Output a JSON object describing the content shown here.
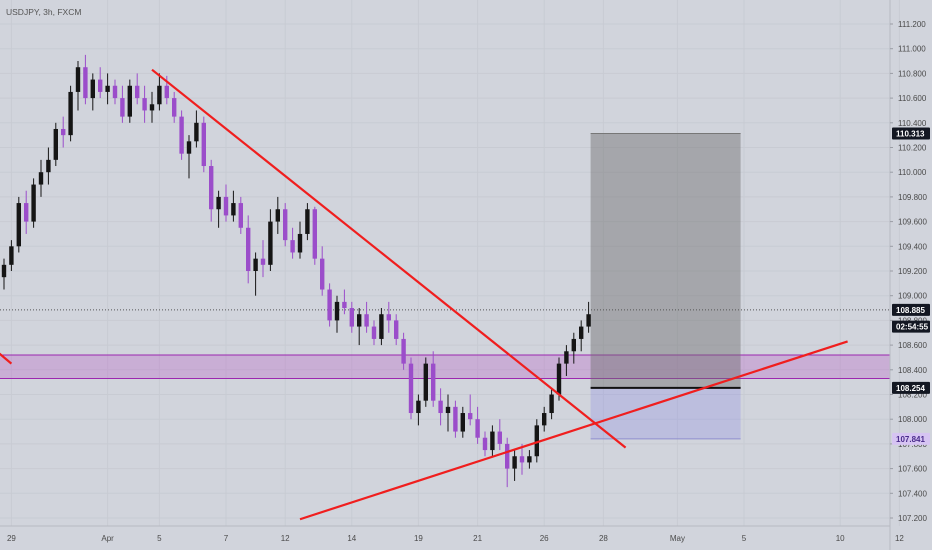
{
  "chart_data": {
    "type": "candlestick",
    "title": "USDJPY, 3h, FXCM",
    "ylim": [
      107.1,
      111.3
    ],
    "y_ticks": [
      "111.200",
      "111.000",
      "110.800",
      "110.600",
      "110.400",
      "110.200",
      "110.000",
      "109.800",
      "109.600",
      "109.400",
      "109.200",
      "109.000",
      "108.800",
      "108.600",
      "108.400",
      "108.200",
      "108.000",
      "107.800",
      "107.600",
      "107.400",
      "107.200"
    ],
    "x_ticks": [
      {
        "label": "29",
        "i": 1
      },
      {
        "label": "Apr",
        "i": 14
      },
      {
        "label": "5",
        "i": 21
      },
      {
        "label": "7",
        "i": 30
      },
      {
        "label": "12",
        "i": 38
      },
      {
        "label": "14",
        "i": 47
      },
      {
        "label": "19",
        "i": 56
      },
      {
        "label": "21",
        "i": 64
      },
      {
        "label": "26",
        "i": 73
      },
      {
        "label": "28",
        "i": 81
      },
      {
        "label": "May",
        "i": 91
      },
      {
        "label": "5",
        "i": 100
      },
      {
        "label": "10",
        "i": 113
      },
      {
        "label": "12",
        "i": 121
      }
    ],
    "price_labels": [
      {
        "text": "110.313",
        "value": 110.313,
        "style": "dark"
      },
      {
        "text": "108.885",
        "value": 108.885,
        "style": "dark"
      },
      {
        "text": "02:54:55",
        "value": 108.75,
        "style": "dark-sub"
      },
      {
        "text": "108.254",
        "value": 108.254,
        "style": "dark"
      },
      {
        "text": "107.841",
        "value": 107.841,
        "style": "purple"
      }
    ],
    "current_price": 108.885,
    "candles": [
      [
        109.15,
        109.3,
        109.05,
        109.25
      ],
      [
        109.25,
        109.45,
        109.2,
        109.4
      ],
      [
        109.4,
        109.8,
        109.35,
        109.75
      ],
      [
        109.75,
        109.85,
        109.5,
        109.6
      ],
      [
        109.6,
        109.95,
        109.55,
        109.9
      ],
      [
        109.9,
        110.1,
        109.8,
        110.0
      ],
      [
        110.0,
        110.2,
        109.9,
        110.1
      ],
      [
        110.1,
        110.4,
        110.05,
        110.35
      ],
      [
        110.35,
        110.45,
        110.2,
        110.3
      ],
      [
        110.3,
        110.7,
        110.25,
        110.65
      ],
      [
        110.65,
        110.9,
        110.5,
        110.85
      ],
      [
        110.85,
        110.95,
        110.55,
        110.6
      ],
      [
        110.6,
        110.8,
        110.5,
        110.75
      ],
      [
        110.75,
        110.85,
        110.6,
        110.65
      ],
      [
        110.65,
        110.8,
        110.55,
        110.7
      ],
      [
        110.7,
        110.75,
        110.55,
        110.6
      ],
      [
        110.6,
        110.7,
        110.4,
        110.45
      ],
      [
        110.45,
        110.75,
        110.4,
        110.7
      ],
      [
        110.7,
        110.8,
        110.55,
        110.6
      ],
      [
        110.6,
        110.7,
        110.4,
        110.5
      ],
      [
        110.5,
        110.65,
        110.4,
        110.55
      ],
      [
        110.55,
        110.8,
        110.5,
        110.7
      ],
      [
        110.7,
        110.78,
        110.55,
        110.6
      ],
      [
        110.6,
        110.65,
        110.4,
        110.45
      ],
      [
        110.45,
        110.5,
        110.1,
        110.15
      ],
      [
        110.15,
        110.3,
        109.95,
        110.25
      ],
      [
        110.25,
        110.5,
        110.2,
        110.4
      ],
      [
        110.4,
        110.45,
        110.0,
        110.05
      ],
      [
        110.05,
        110.1,
        109.6,
        109.7
      ],
      [
        109.7,
        109.85,
        109.55,
        109.8
      ],
      [
        109.8,
        109.9,
        109.6,
        109.65
      ],
      [
        109.65,
        109.85,
        109.6,
        109.75
      ],
      [
        109.75,
        109.8,
        109.5,
        109.55
      ],
      [
        109.55,
        109.65,
        109.1,
        109.2
      ],
      [
        109.2,
        109.35,
        109.0,
        109.3
      ],
      [
        109.3,
        109.45,
        109.15,
        109.25
      ],
      [
        109.25,
        109.7,
        109.2,
        109.6
      ],
      [
        109.6,
        109.8,
        109.5,
        109.7
      ],
      [
        109.7,
        109.75,
        109.4,
        109.45
      ],
      [
        109.45,
        109.55,
        109.3,
        109.35
      ],
      [
        109.35,
        109.6,
        109.3,
        109.5
      ],
      [
        109.5,
        109.75,
        109.45,
        109.7
      ],
      [
        109.7,
        109.72,
        109.25,
        109.3
      ],
      [
        109.3,
        109.4,
        109.0,
        109.05
      ],
      [
        109.05,
        109.1,
        108.75,
        108.8
      ],
      [
        108.8,
        109.0,
        108.7,
        108.95
      ],
      [
        108.95,
        109.05,
        108.85,
        108.9
      ],
      [
        108.9,
        108.95,
        108.7,
        108.75
      ],
      [
        108.75,
        108.9,
        108.6,
        108.85
      ],
      [
        108.85,
        108.95,
        108.7,
        108.75
      ],
      [
        108.75,
        108.8,
        108.6,
        108.65
      ],
      [
        108.65,
        108.9,
        108.6,
        108.85
      ],
      [
        108.85,
        108.95,
        108.7,
        108.8
      ],
      [
        108.8,
        108.85,
        108.6,
        108.65
      ],
      [
        108.65,
        108.7,
        108.4,
        108.45
      ],
      [
        108.45,
        108.5,
        108.0,
        108.05
      ],
      [
        108.05,
        108.2,
        107.95,
        108.15
      ],
      [
        108.15,
        108.5,
        108.1,
        108.45
      ],
      [
        108.45,
        108.55,
        108.1,
        108.15
      ],
      [
        108.15,
        108.25,
        107.95,
        108.05
      ],
      [
        108.05,
        108.2,
        107.9,
        108.1
      ],
      [
        108.1,
        108.15,
        107.85,
        107.9
      ],
      [
        107.9,
        108.1,
        107.85,
        108.05
      ],
      [
        108.05,
        108.2,
        107.95,
        108.0
      ],
      [
        108.0,
        108.1,
        107.8,
        107.85
      ],
      [
        107.85,
        107.9,
        107.7,
        107.75
      ],
      [
        107.75,
        107.95,
        107.7,
        107.9
      ],
      [
        107.9,
        108.0,
        107.75,
        107.8
      ],
      [
        107.8,
        107.85,
        107.45,
        107.6
      ],
      [
        107.6,
        107.75,
        107.5,
        107.7
      ],
      [
        107.7,
        107.8,
        107.55,
        107.65
      ],
      [
        107.65,
        107.75,
        107.6,
        107.7
      ],
      [
        107.7,
        108.0,
        107.65,
        107.95
      ],
      [
        107.95,
        108.1,
        107.9,
        108.05
      ],
      [
        108.05,
        108.25,
        108.0,
        108.2
      ],
      [
        108.2,
        108.5,
        108.15,
        108.45
      ],
      [
        108.45,
        108.6,
        108.35,
        108.55
      ],
      [
        108.55,
        108.7,
        108.45,
        108.65
      ],
      [
        108.65,
        108.8,
        108.55,
        108.75
      ],
      [
        108.75,
        108.95,
        108.7,
        108.85
      ]
    ],
    "annotations": {
      "support_zone": [
        108.33,
        108.52
      ],
      "position": {
        "start_i": 79,
        "end_i": 99,
        "entry": 108.254,
        "target": 110.313,
        "stop": 107.841
      },
      "lines": [
        {
          "name": "descending-trendline",
          "from": [
            20,
            110.83
          ],
          "to": [
            84,
            107.77
          ]
        },
        {
          "name": "ascending-trendline",
          "from": [
            40,
            107.19
          ],
          "to": [
            114,
            108.63
          ]
        },
        {
          "name": "left-trendline-stub",
          "from": [
            -2,
            108.6
          ],
          "to": [
            1,
            108.45
          ]
        }
      ]
    }
  }
}
